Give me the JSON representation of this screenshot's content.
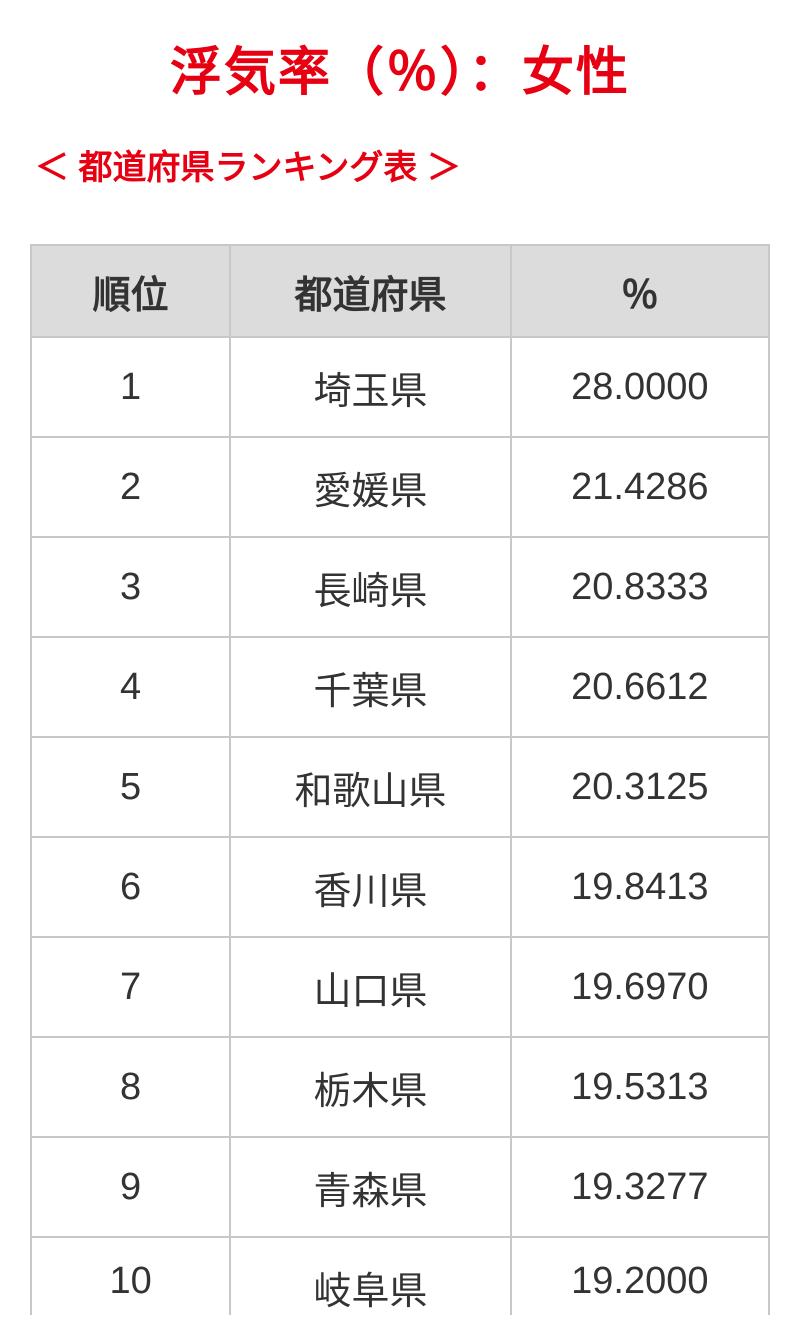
{
  "header": {
    "title": "浮気率（％）：女性",
    "subtitle": "＜ 都道府県ランキング表 ＞"
  },
  "table": {
    "type": "table",
    "columns": [
      {
        "label": "順位",
        "align": "center"
      },
      {
        "label": "都道府県",
        "align": "center"
      },
      {
        "label": "％",
        "align": "center"
      }
    ],
    "rows": [
      {
        "rank": "1",
        "pref": "埼玉県",
        "pct": "28.0000"
      },
      {
        "rank": "2",
        "pref": "愛媛県",
        "pct": "21.4286"
      },
      {
        "rank": "3",
        "pref": "長崎県",
        "pct": "20.8333"
      },
      {
        "rank": "4",
        "pref": "千葉県",
        "pct": "20.6612"
      },
      {
        "rank": "5",
        "pref": "和歌山県",
        "pct": "20.3125"
      },
      {
        "rank": "6",
        "pref": "香川県",
        "pct": "19.8413"
      },
      {
        "rank": "7",
        "pref": "山口県",
        "pct": "19.6970"
      },
      {
        "rank": "8",
        "pref": "栃木県",
        "pct": "19.5313"
      },
      {
        "rank": "9",
        "pref": "青森県",
        "pct": "19.3277"
      },
      {
        "rank": "10",
        "pref": "岐阜県",
        "pct": "19.2000"
      }
    ],
    "header_bg": "#dcdcdc",
    "border_color": "#c8c8c8",
    "title_color": "#e60012",
    "text_color": "#333333",
    "font_size_title": 52,
    "font_size_subtitle": 34,
    "font_size_cell": 38
  }
}
